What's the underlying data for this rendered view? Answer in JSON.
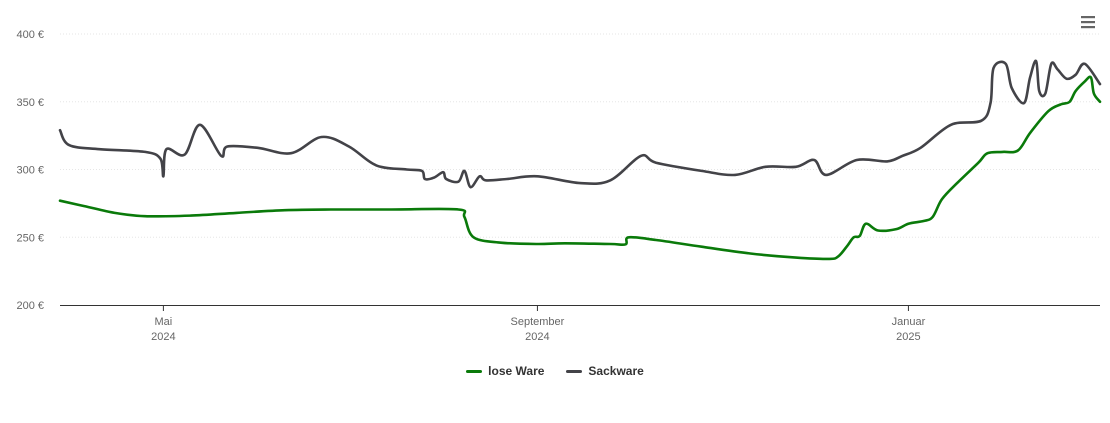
{
  "menu": {
    "icon": "hamburger-menu-icon"
  },
  "colors": {
    "lose_ware": "#0a7a0a",
    "sackware": "#434348",
    "grid": "#e6e6e6",
    "axis": "#333333"
  },
  "chart_data": {
    "type": "line",
    "y_ticks": [
      "200 €",
      "250 €",
      "300 €",
      "350 €",
      "400 €"
    ],
    "ylim": [
      200,
      400
    ],
    "x_domain": [
      "2024-03-28",
      "2025-03-05"
    ],
    "x_ticks": [
      {
        "date": "2024-05-01",
        "month": "Mai",
        "year": "2024"
      },
      {
        "date": "2024-09-01",
        "month": "September",
        "year": "2024"
      },
      {
        "date": "2025-01-01",
        "month": "Januar",
        "year": "2025"
      }
    ],
    "grid": true,
    "legend_position": "bottom-center",
    "series": [
      {
        "name": "lose Ware",
        "points": [
          [
            "2024-03-28",
            277
          ],
          [
            "2024-04-05",
            273
          ],
          [
            "2024-04-15",
            268
          ],
          [
            "2024-04-25",
            265.5
          ],
          [
            "2024-05-10",
            266
          ],
          [
            "2024-05-25",
            268
          ],
          [
            "2024-06-10",
            270
          ],
          [
            "2024-06-25",
            270.5
          ],
          [
            "2024-07-15",
            270.5
          ],
          [
            "2024-08-06",
            270.5
          ],
          [
            "2024-08-08",
            265
          ],
          [
            "2024-08-11",
            250
          ],
          [
            "2024-08-20",
            246
          ],
          [
            "2024-09-01",
            245
          ],
          [
            "2024-09-10",
            245.5
          ],
          [
            "2024-09-25",
            245
          ],
          [
            "2024-09-30",
            244.8
          ],
          [
            "2024-10-01",
            250
          ],
          [
            "2024-10-10",
            248
          ],
          [
            "2024-10-25",
            243
          ],
          [
            "2024-11-10",
            238
          ],
          [
            "2024-11-25",
            235
          ],
          [
            "2024-12-06",
            234
          ],
          [
            "2024-12-09",
            236
          ],
          [
            "2024-12-12",
            244
          ],
          [
            "2024-12-14",
            250
          ],
          [
            "2024-12-16",
            251
          ],
          [
            "2024-12-18",
            260
          ],
          [
            "2024-12-22",
            255
          ],
          [
            "2024-12-28",
            256
          ],
          [
            "2025-01-01",
            260
          ],
          [
            "2025-01-06",
            262
          ],
          [
            "2025-01-09",
            265
          ],
          [
            "2025-01-12",
            278
          ],
          [
            "2025-01-17",
            290
          ],
          [
            "2025-01-24",
            305
          ],
          [
            "2025-01-27",
            312
          ],
          [
            "2025-02-01",
            313
          ],
          [
            "2025-02-06",
            314
          ],
          [
            "2025-02-10",
            327
          ],
          [
            "2025-02-16",
            343
          ],
          [
            "2025-02-20",
            348
          ],
          [
            "2025-02-23",
            350
          ],
          [
            "2025-02-25",
            358
          ],
          [
            "2025-02-28",
            365
          ],
          [
            "2025-03-02",
            368
          ],
          [
            "2025-03-03",
            356
          ],
          [
            "2025-03-05",
            350
          ]
        ]
      },
      {
        "name": "Sackware",
        "points": [
          [
            "2024-03-28",
            329
          ],
          [
            "2024-03-31",
            318
          ],
          [
            "2024-04-10",
            315
          ],
          [
            "2024-04-25",
            313
          ],
          [
            "2024-04-30",
            308
          ],
          [
            "2024-05-01",
            295
          ],
          [
            "2024-05-02",
            315
          ],
          [
            "2024-05-08",
            311
          ],
          [
            "2024-05-13",
            333
          ],
          [
            "2024-05-20",
            310
          ],
          [
            "2024-05-22",
            317
          ],
          [
            "2024-06-01",
            316
          ],
          [
            "2024-06-12",
            312
          ],
          [
            "2024-06-22",
            324
          ],
          [
            "2024-07-01",
            317
          ],
          [
            "2024-07-10",
            303
          ],
          [
            "2024-07-20",
            300
          ],
          [
            "2024-07-25",
            299
          ],
          [
            "2024-07-26",
            293
          ],
          [
            "2024-07-29",
            294
          ],
          [
            "2024-08-01",
            298
          ],
          [
            "2024-08-02",
            293
          ],
          [
            "2024-08-06",
            291
          ],
          [
            "2024-08-08",
            299
          ],
          [
            "2024-08-10",
            287
          ],
          [
            "2024-08-13",
            295
          ],
          [
            "2024-08-15",
            292
          ],
          [
            "2024-08-22",
            293
          ],
          [
            "2024-09-01",
            295
          ],
          [
            "2024-09-15",
            290
          ],
          [
            "2024-09-25",
            292
          ],
          [
            "2024-10-05",
            310
          ],
          [
            "2024-10-10",
            305
          ],
          [
            "2024-10-25",
            299
          ],
          [
            "2024-11-05",
            296
          ],
          [
            "2024-11-15",
            302
          ],
          [
            "2024-11-25",
            302
          ],
          [
            "2024-12-01",
            307
          ],
          [
            "2024-12-05",
            296
          ],
          [
            "2024-12-15",
            307
          ],
          [
            "2024-12-25",
            306
          ],
          [
            "2024-12-30",
            310
          ],
          [
            "2025-01-05",
            316
          ],
          [
            "2025-01-15",
            333
          ],
          [
            "2025-01-25",
            336
          ],
          [
            "2025-01-28",
            349
          ],
          [
            "2025-01-29",
            375
          ],
          [
            "2025-02-02",
            378
          ],
          [
            "2025-02-04",
            360
          ],
          [
            "2025-02-08",
            349
          ],
          [
            "2025-02-10",
            368
          ],
          [
            "2025-02-12",
            380
          ],
          [
            "2025-02-13",
            358
          ],
          [
            "2025-02-15",
            356
          ],
          [
            "2025-02-17",
            378
          ],
          [
            "2025-02-19",
            374
          ],
          [
            "2025-02-22",
            367
          ],
          [
            "2025-02-25",
            370
          ],
          [
            "2025-02-28",
            378
          ],
          [
            "2025-03-05",
            363
          ]
        ]
      }
    ]
  }
}
